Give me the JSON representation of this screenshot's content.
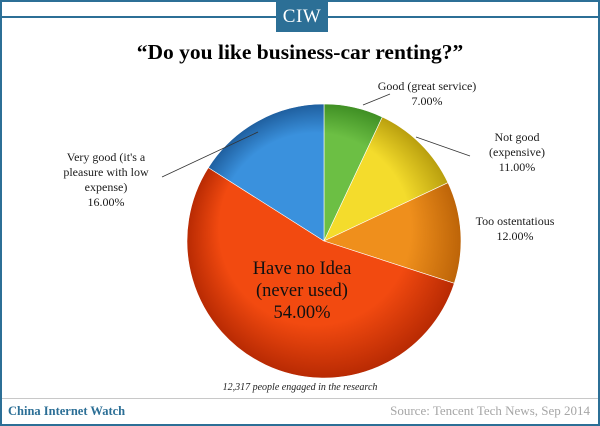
{
  "header": {
    "logo_text": "CIW"
  },
  "chart_data": {
    "type": "pie",
    "title": "“Do you like business-car renting?”",
    "slices": [
      {
        "label": [
          "Good (great service)"
        ],
        "value": 7.0,
        "value_text": "7.00%",
        "color": "#6cbf44",
        "dark": "#3f8f24"
      },
      {
        "label": [
          "Not good",
          "(expensive)"
        ],
        "value": 11.0,
        "value_text": "11.00%",
        "color": "#f4dc2c",
        "dark": "#b99f0e"
      },
      {
        "label": [
          "Too ostentatious"
        ],
        "value": 12.0,
        "value_text": "12.00%",
        "color": "#ef8f1c",
        "dark": "#bd6408"
      },
      {
        "label": [
          "Have no Idea",
          "(never used)"
        ],
        "value": 54.0,
        "value_text": "54.00%",
        "color": "#f24a10",
        "dark": "#b82a03"
      },
      {
        "label": [
          "Very good (it's a",
          "pleasure with low",
          "expense)"
        ],
        "value": 16.0,
        "value_text": "16.00%",
        "color": "#3a91dd",
        "dark": "#1f5f9f"
      }
    ],
    "note": "12,317 people engaged in the research",
    "legend": "none (leader-line labels)"
  },
  "footer": {
    "brand": "China Internet Watch",
    "source": "Source: Tencent Tech News, Sep 2014"
  }
}
